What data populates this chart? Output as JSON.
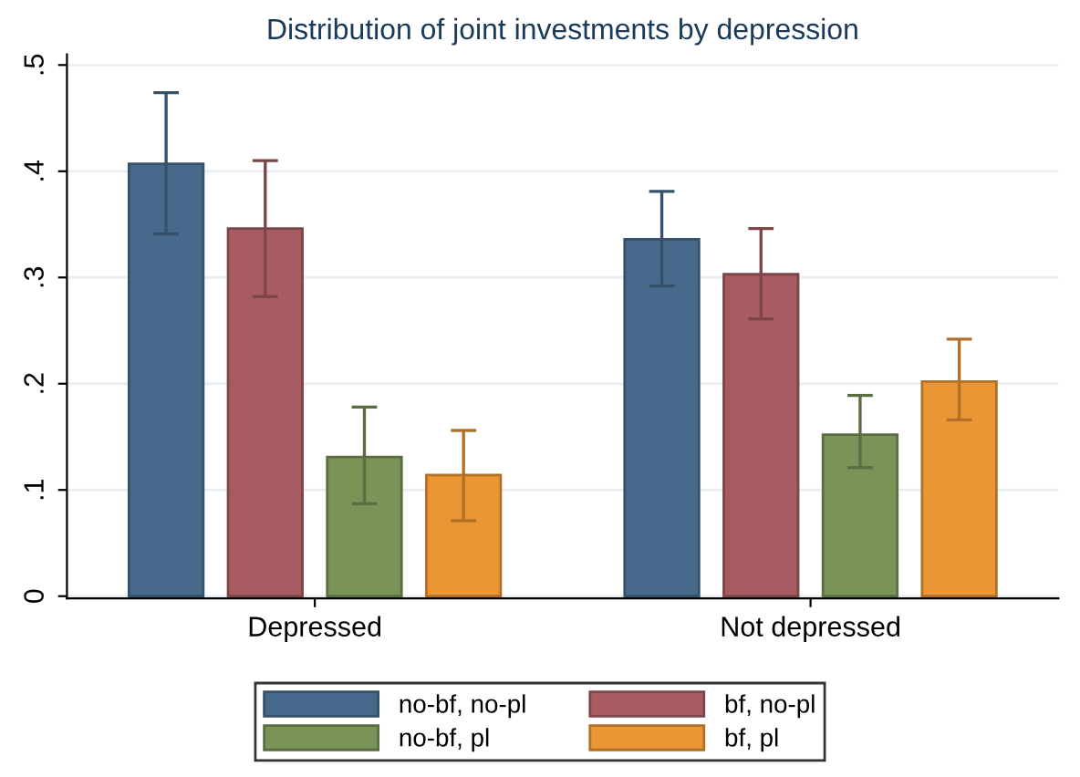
{
  "chart_data": {
    "type": "bar",
    "title": "Distribution of joint investments by depression",
    "categories": [
      "Depressed",
      "Not depressed"
    ],
    "series": [
      {
        "name": "no-bf, no-pl",
        "color": "#476a8c",
        "values": [
          0.407,
          0.336
        ],
        "errors": [
          [
            0.341,
            0.474
          ],
          [
            0.292,
            0.381
          ]
        ]
      },
      {
        "name": "bf, no-pl",
        "color": "#a65c60",
        "values": [
          0.346,
          0.303
        ],
        "errors": [
          [
            0.282,
            0.41
          ],
          [
            0.261,
            0.346
          ]
        ]
      },
      {
        "name": "no-bf, pl",
        "color": "#7a9357",
        "values": [
          0.131,
          0.152
        ],
        "errors": [
          [
            0.087,
            0.178
          ],
          [
            0.121,
            0.189
          ]
        ]
      },
      {
        "name": "bf, pl",
        "color": "#ea9634",
        "values": [
          0.114,
          0.202
        ],
        "errors": [
          [
            0.071,
            0.156
          ],
          [
            0.166,
            0.242
          ]
        ]
      }
    ],
    "ylim": [
      -0.002,
      0.51
    ],
    "yticks": [
      {
        "value": 0,
        "label": "0"
      },
      {
        "value": 0.1,
        "label": ".1"
      },
      {
        "value": 0.2,
        "label": ".2"
      },
      {
        "value": 0.3,
        "label": ".3"
      },
      {
        "value": 0.4,
        "label": ".4"
      },
      {
        "value": 0.5,
        "label": ".5"
      }
    ],
    "grid": "y",
    "legend": "bottom"
  }
}
